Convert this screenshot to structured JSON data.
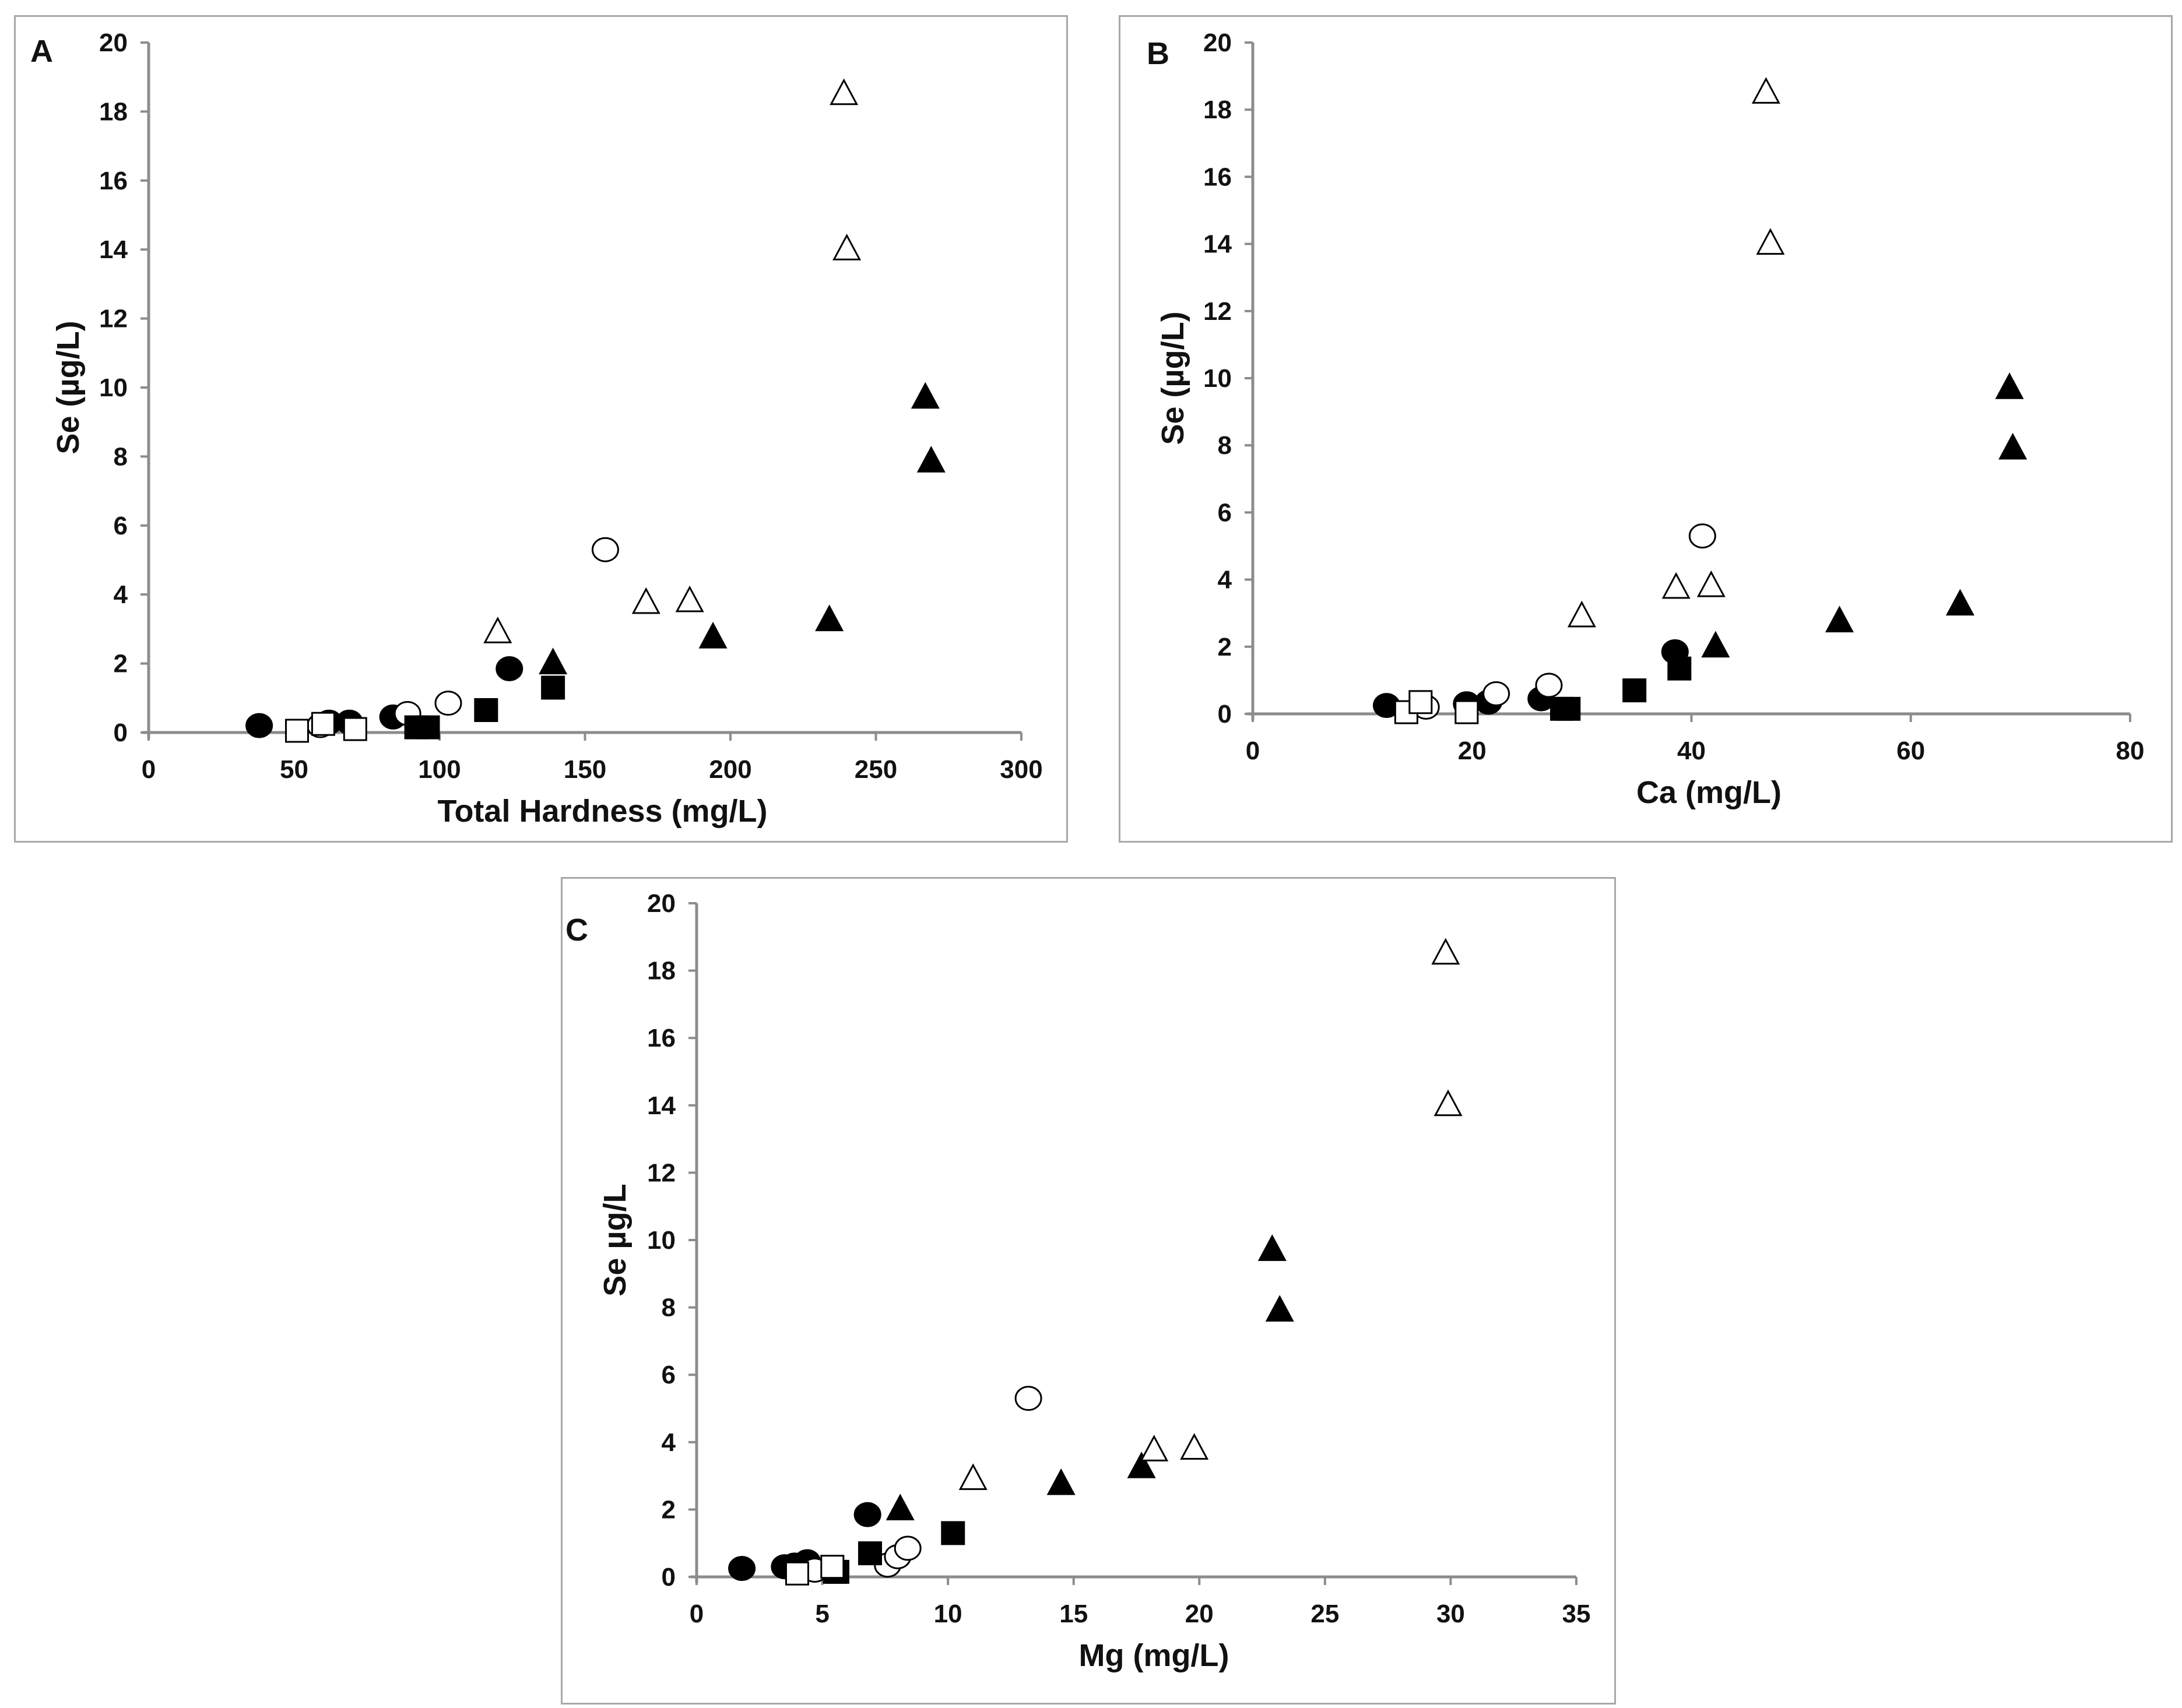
{
  "colors": {
    "axis": "#8c8c8c",
    "marker": "#000000",
    "open_fill": "#ffffff",
    "border": "#a8a8a8"
  },
  "chart_data": [
    {
      "panel_label": "A",
      "type": "scatter",
      "xlabel": "Total Hardness (mg/L)",
      "ylabel": "Se (µg/L)",
      "xlim": [
        0,
        300
      ],
      "ylim": [
        0,
        20
      ],
      "xticks": [
        "0",
        "50",
        "100",
        "150",
        "200",
        "250",
        "300"
      ],
      "yticks": [
        "0",
        "2",
        "4",
        "6",
        "8",
        "10",
        "12",
        "14",
        "16",
        "18",
        "20"
      ],
      "series": [
        {
          "name": "filled circle",
          "marker": "circle",
          "filled": true,
          "x": [
            38,
            62,
            69,
            84,
            124
          ],
          "y": [
            0.2,
            0.3,
            0.3,
            0.45,
            1.85
          ]
        },
        {
          "name": "open circle",
          "marker": "circle",
          "filled": false,
          "x": [
            59,
            89,
            103,
            157
          ],
          "y": [
            0.2,
            0.55,
            0.85,
            5.3
          ]
        },
        {
          "name": "filled square",
          "marker": "square",
          "filled": true,
          "x": [
            92,
            96,
            116,
            139
          ],
          "y": [
            0.15,
            0.15,
            0.65,
            1.3
          ]
        },
        {
          "name": "open square",
          "marker": "square",
          "filled": false,
          "x": [
            51,
            60,
            71
          ],
          "y": [
            0.05,
            0.25,
            0.1
          ]
        },
        {
          "name": "filled triangle",
          "marker": "triangle",
          "filled": true,
          "x": [
            139,
            194,
            234,
            267,
            269
          ],
          "y": [
            2.0,
            2.75,
            3.25,
            9.7,
            7.85
          ]
        },
        {
          "name": "open triangle",
          "marker": "triangle",
          "filled": false,
          "x": [
            120,
            171,
            186,
            239,
            240
          ],
          "y": [
            2.9,
            3.75,
            3.8,
            18.5,
            14.0
          ]
        }
      ]
    },
    {
      "panel_label": "B",
      "type": "scatter",
      "xlabel": "Ca (mg/L)",
      "ylabel": "Se (µg/L)",
      "xlim": [
        0,
        80
      ],
      "ylim": [
        0,
        20
      ],
      "xticks": [
        "0",
        "20",
        "40",
        "60",
        "80"
      ],
      "yticks": [
        "0",
        "2",
        "4",
        "6",
        "8",
        "10",
        "12",
        "14",
        "16",
        "18",
        "20"
      ],
      "series": [
        {
          "name": "filled circle",
          "marker": "circle",
          "filled": true,
          "x": [
            12.2,
            19.5,
            21.5,
            26.3,
            38.5
          ],
          "y": [
            0.25,
            0.3,
            0.35,
            0.45,
            1.85
          ]
        },
        {
          "name": "open circle",
          "marker": "circle",
          "filled": false,
          "x": [
            15.8,
            22.2,
            27.0,
            41.0
          ],
          "y": [
            0.2,
            0.6,
            0.85,
            5.3
          ]
        },
        {
          "name": "filled square",
          "marker": "square",
          "filled": true,
          "x": [
            28.2,
            28.8,
            34.8,
            38.9
          ],
          "y": [
            0.15,
            0.15,
            0.7,
            1.35
          ]
        },
        {
          "name": "open square",
          "marker": "square",
          "filled": false,
          "x": [
            14.0,
            15.3,
            19.5
          ],
          "y": [
            0.05,
            0.35,
            0.05
          ]
        },
        {
          "name": "filled triangle",
          "marker": "triangle",
          "filled": true,
          "x": [
            42.2,
            53.5,
            64.5,
            69.0,
            69.3
          ],
          "y": [
            2.0,
            2.75,
            3.25,
            9.7,
            7.9
          ]
        },
        {
          "name": "open triangle",
          "marker": "triangle",
          "filled": false,
          "x": [
            30.0,
            38.6,
            41.8,
            46.8,
            47.2
          ],
          "y": [
            2.9,
            3.75,
            3.8,
            18.5,
            14.0
          ]
        }
      ]
    },
    {
      "panel_label": "C",
      "type": "scatter",
      "xlabel": "Mg (mg/L)",
      "ylabel": "Se µg/L",
      "xlim": [
        0,
        35
      ],
      "ylim": [
        0,
        20
      ],
      "xticks": [
        "0",
        "5",
        "10",
        "15",
        "20",
        "25",
        "30",
        "35"
      ],
      "yticks": [
        "0",
        "2",
        "4",
        "6",
        "8",
        "10",
        "12",
        "14",
        "16",
        "18",
        "20"
      ],
      "series": [
        {
          "name": "filled circle",
          "marker": "circle",
          "filled": true,
          "x": [
            1.8,
            3.5,
            3.9,
            4.4,
            6.8
          ],
          "y": [
            0.25,
            0.3,
            0.35,
            0.45,
            1.85
          ]
        },
        {
          "name": "open circle",
          "marker": "circle",
          "filled": false,
          "x": [
            4.7,
            7.6,
            8.0,
            8.4,
            13.2
          ],
          "y": [
            0.2,
            0.35,
            0.6,
            0.85,
            5.3
          ]
        },
        {
          "name": "filled square",
          "marker": "square",
          "filled": true,
          "x": [
            5.5,
            5.6,
            6.9,
            10.2
          ],
          "y": [
            0.15,
            0.15,
            0.7,
            1.3
          ]
        },
        {
          "name": "open square",
          "marker": "square",
          "filled": false,
          "x": [
            4.0,
            5.4
          ],
          "y": [
            0.1,
            0.3
          ]
        },
        {
          "name": "filled triangle",
          "marker": "triangle",
          "filled": true,
          "x": [
            8.1,
            14.5,
            17.7,
            22.9,
            23.2
          ],
          "y": [
            2.0,
            2.75,
            3.25,
            9.7,
            7.9
          ]
        },
        {
          "name": "open triangle",
          "marker": "triangle",
          "filled": false,
          "x": [
            11.0,
            18.2,
            19.8,
            29.8,
            29.9
          ],
          "y": [
            2.9,
            3.75,
            3.8,
            18.5,
            14.0
          ]
        }
      ]
    }
  ]
}
